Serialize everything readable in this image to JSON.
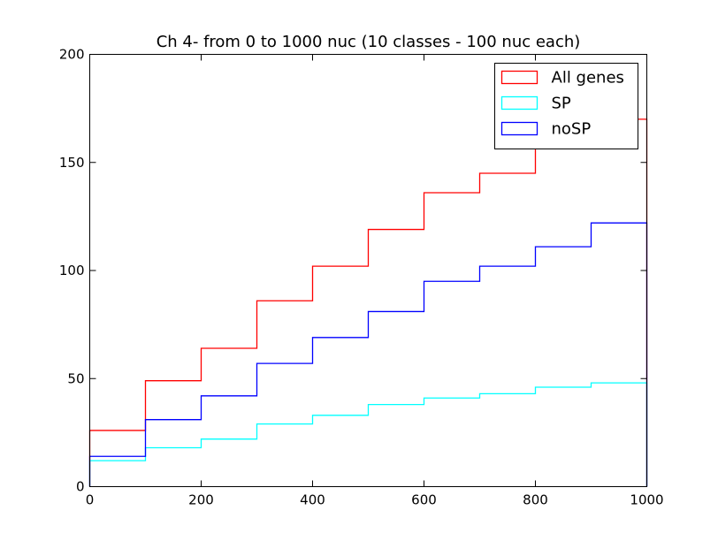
{
  "chart_data": {
    "type": "step",
    "title": "Ch 4- from 0 to 1000 nuc (10 classes - 100 nuc each)",
    "xlabel": "",
    "ylabel": "",
    "xlim": [
      0,
      1000
    ],
    "ylim": [
      0,
      200
    ],
    "xticks": [
      0,
      200,
      400,
      600,
      800,
      1000
    ],
    "yticks": [
      0,
      50,
      100,
      150,
      200
    ],
    "grid": false,
    "legend_position": "top-right",
    "bin_edges": [
      0,
      100,
      200,
      300,
      400,
      500,
      600,
      700,
      800,
      900,
      1000
    ],
    "series": [
      {
        "name": "All genes",
        "color": "#ff0000",
        "values": [
          26,
          49,
          64,
          86,
          102,
          119,
          136,
          145,
          157,
          170
        ]
      },
      {
        "name": "SP",
        "color": "#00ffff",
        "values": [
          12,
          18,
          22,
          29,
          33,
          38,
          41,
          43,
          46,
          48
        ]
      },
      {
        "name": "noSP",
        "color": "#0000ff",
        "values": [
          14,
          31,
          42,
          57,
          69,
          81,
          95,
          102,
          111,
          122
        ]
      }
    ]
  }
}
